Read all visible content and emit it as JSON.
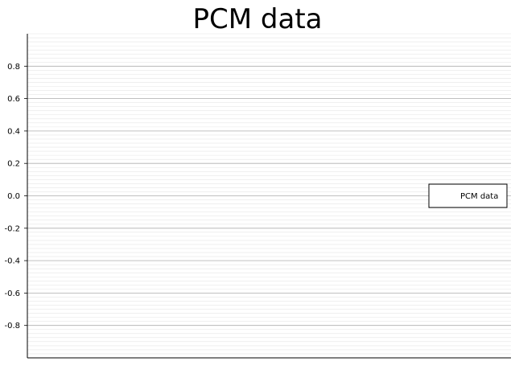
{
  "chart_data": {
    "type": "line",
    "title": "PCM data",
    "xlabel": "",
    "ylabel": "",
    "ylim": [
      -1.0,
      1.0
    ],
    "yticks": [
      0.8,
      0.6,
      0.4,
      0.2,
      0.0,
      -0.2,
      -0.4,
      -0.6,
      -0.8
    ],
    "ytick_labels": [
      "0.8",
      "0.6",
      "0.4",
      "0.2",
      "0.0",
      "-0.2",
      "-0.4",
      "-0.6",
      "-0.8"
    ],
    "minor_grid_step": 0.025,
    "grid": true,
    "legend_position": "center-right",
    "series": [
      {
        "name": "PCM data",
        "values": [],
        "color": "#ffffff"
      }
    ],
    "colors": {
      "major_grid": "#b0b0b0",
      "minor_grid": "#e6e6e6",
      "axis": "#000000"
    }
  }
}
